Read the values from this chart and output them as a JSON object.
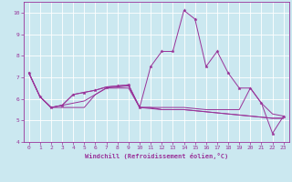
{
  "xlabel": "Windchill (Refroidissement éolien,°C)",
  "background_color": "#cbe8f0",
  "grid_color": "#ffffff",
  "line_color": "#993399",
  "xlim": [
    -0.5,
    23.5
  ],
  "ylim": [
    4,
    10.5
  ],
  "yticks": [
    4,
    5,
    6,
    7,
    8,
    9,
    10
  ],
  "xticks": [
    0,
    1,
    2,
    3,
    4,
    5,
    6,
    7,
    8,
    9,
    10,
    11,
    12,
    13,
    14,
    15,
    16,
    17,
    18,
    19,
    20,
    21,
    22,
    23
  ],
  "series": [
    [
      7.2,
      6.1,
      5.6,
      5.6,
      5.6,
      5.6,
      6.2,
      6.5,
      6.5,
      6.5,
      5.6,
      5.6,
      5.5,
      5.5,
      5.5,
      5.45,
      5.4,
      5.35,
      5.3,
      5.25,
      5.2,
      5.15,
      5.1,
      5.1
    ],
    [
      7.2,
      6.1,
      5.6,
      5.7,
      5.8,
      5.9,
      6.2,
      6.5,
      6.55,
      6.6,
      5.6,
      5.55,
      5.5,
      5.5,
      5.5,
      5.45,
      5.4,
      5.35,
      5.3,
      5.25,
      5.2,
      5.15,
      5.1,
      5.1
    ],
    [
      7.2,
      6.1,
      5.6,
      5.7,
      6.2,
      6.3,
      6.4,
      6.55,
      6.6,
      6.65,
      5.6,
      7.5,
      8.2,
      8.2,
      10.1,
      9.7,
      7.5,
      8.2,
      7.2,
      6.5,
      6.5,
      5.8,
      4.4,
      5.2
    ],
    [
      7.2,
      6.1,
      5.6,
      5.7,
      6.2,
      6.3,
      6.4,
      6.55,
      6.6,
      6.65,
      5.6,
      5.6,
      5.6,
      5.6,
      5.6,
      5.55,
      5.5,
      5.5,
      5.5,
      5.5,
      6.5,
      5.8,
      5.3,
      5.2
    ]
  ],
  "marker_series": 2,
  "marker": "*",
  "markersize": 2.5,
  "linewidth": 0.7,
  "xlabel_fontsize": 5.0,
  "tick_fontsize": 4.5
}
